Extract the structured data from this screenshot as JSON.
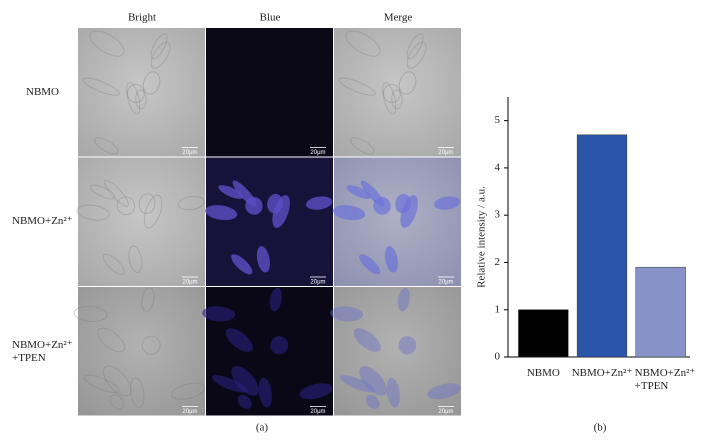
{
  "panel_a": {
    "label": "(a)",
    "columns": [
      "Bright",
      "Blue",
      "Merge"
    ],
    "rows": [
      "NBMO",
      "NBMO+Zn²⁺",
      "NBMO+Zn²⁺\n+TPEN"
    ],
    "scale_bar": "20μm"
  },
  "chart_data": {
    "type": "bar",
    "label": "(b)",
    "ylabel": "Relative intensity / a.u.",
    "categories": [
      "NBMO",
      "NBMO+Zn²⁺",
      "NBMO+Zn²⁺\n+TPEN"
    ],
    "values": [
      1,
      4.7,
      1.9
    ],
    "colors": [
      "#000000",
      "#2b55a9",
      "#8792c9"
    ],
    "ylim": [
      0,
      5.5
    ],
    "yticks": [
      0,
      1,
      2,
      3,
      4,
      5
    ],
    "grid": false
  }
}
